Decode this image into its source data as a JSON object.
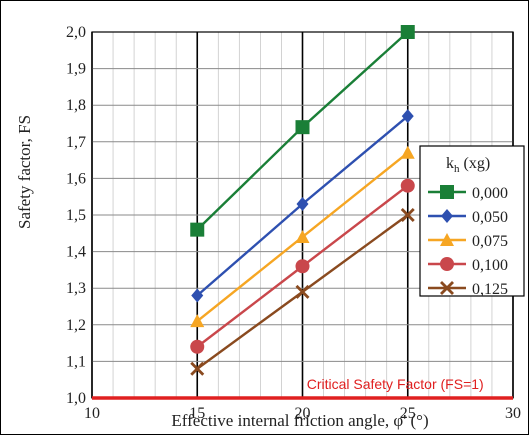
{
  "chart_data": {
    "type": "line",
    "xlabel": "Effective internal friction angle, φ' (°)",
    "ylabel": "Safety factor, FS",
    "xlim": [
      10,
      30
    ],
    "ylim": [
      1.0,
      2.0
    ],
    "x_ticks": [
      "10",
      "15",
      "20",
      "25",
      "30"
    ],
    "y_ticks": [
      "1,0",
      "1,1",
      "1,2",
      "1,3",
      "1,4",
      "1,5",
      "1,6",
      "1,7",
      "1,8",
      "1,9",
      "2,0"
    ],
    "grid": true,
    "legend": {
      "title_main": "k",
      "title_sub": "h",
      "title_rest": " (xg)",
      "placement": "right"
    },
    "x": [
      15,
      20,
      25
    ],
    "series": [
      {
        "name": "0,000",
        "values": [
          1.46,
          1.74,
          2.0
        ],
        "color": "#1a7f37",
        "marker": "square"
      },
      {
        "name": "0,050",
        "values": [
          1.28,
          1.53,
          1.77
        ],
        "color": "#2e50b0",
        "marker": "diamond"
      },
      {
        "name": "0,075",
        "values": [
          1.21,
          1.44,
          1.67
        ],
        "color": "#f6a623",
        "marker": "triangle"
      },
      {
        "name": "0,100",
        "values": [
          1.14,
          1.36,
          1.58
        ],
        "color": "#c9474b",
        "marker": "circle"
      },
      {
        "name": "0,125",
        "values": [
          1.08,
          1.29,
          1.5
        ],
        "color": "#8a4a1f",
        "marker": "x"
      }
    ],
    "reference_line": {
      "y": 1.0,
      "label": "Critical Safety Factor (FS=1)",
      "color": "#e02020"
    }
  }
}
